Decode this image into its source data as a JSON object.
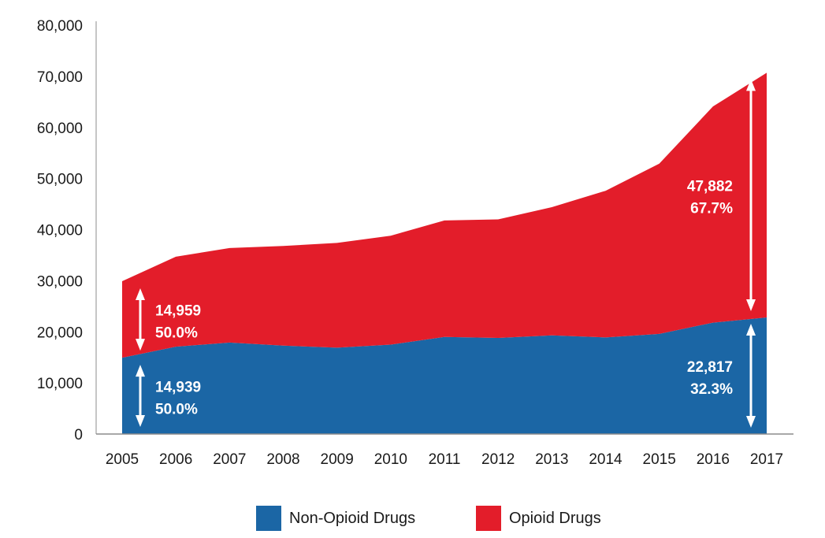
{
  "chart_data": {
    "type": "area",
    "stacked": true,
    "x": [
      "2005",
      "2006",
      "2007",
      "2008",
      "2009",
      "2010",
      "2011",
      "2012",
      "2013",
      "2014",
      "2015",
      "2016",
      "2017"
    ],
    "ylim": [
      0,
      80000
    ],
    "yticks": [
      "0",
      "10,000",
      "20,000",
      "30,000",
      "40,000",
      "50,000",
      "60,000",
      "70,000",
      "80,000"
    ],
    "series": [
      {
        "name": "Non-Opioid Drugs",
        "color": "#1b66a5",
        "values": [
          14939,
          17100,
          17900,
          17300,
          16900,
          17500,
          19000,
          18800,
          19300,
          18900,
          19600,
          21800,
          22817
        ]
      },
      {
        "name": "Opioid Drugs",
        "color": "#e31d2a",
        "values": [
          14959,
          17600,
          18500,
          19500,
          20500,
          21300,
          22800,
          23200,
          25100,
          28700,
          33300,
          42300,
          47882
        ]
      }
    ],
    "annotations": [
      {
        "x": "2005",
        "series": "Opioid Drugs",
        "value": "14,959",
        "percent": "50.0%"
      },
      {
        "x": "2005",
        "series": "Non-Opioid Drugs",
        "value": "14,939",
        "percent": "50.0%"
      },
      {
        "x": "2017",
        "series": "Opioid Drugs",
        "value": "47,882",
        "percent": "67.7%"
      },
      {
        "x": "2017",
        "series": "Non-Opioid Drugs",
        "value": "22,817",
        "percent": "32.3%"
      }
    ],
    "legend": {
      "placement": "bottom"
    }
  }
}
